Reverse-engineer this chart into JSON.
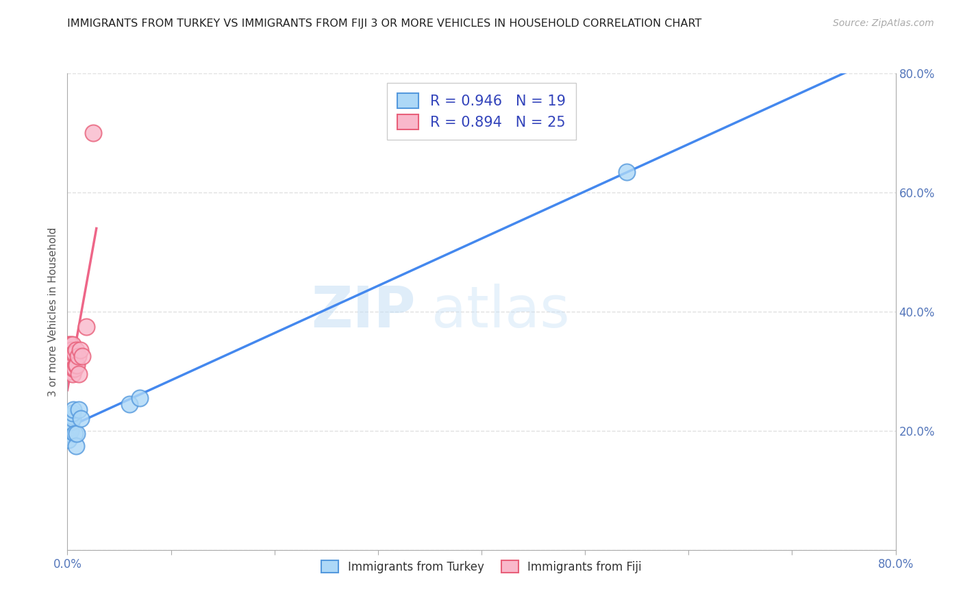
{
  "title": "IMMIGRANTS FROM TURKEY VS IMMIGRANTS FROM FIJI 3 OR MORE VEHICLES IN HOUSEHOLD CORRELATION CHART",
  "source": "Source: ZipAtlas.com",
  "ylabel": "3 or more Vehicles in Household",
  "xlim": [
    0.0,
    0.8
  ],
  "ylim": [
    0.0,
    0.8
  ],
  "xtick_vals": [
    0.0,
    0.1,
    0.2,
    0.3,
    0.4,
    0.5,
    0.6,
    0.7,
    0.8
  ],
  "ytick_vals": [
    0.0,
    0.2,
    0.4,
    0.6,
    0.8
  ],
  "background_color": "#ffffff",
  "watermark_text": "ZIP",
  "watermark_text2": "atlas",
  "turkey_color": "#add8f7",
  "turkey_edge_color": "#5599dd",
  "fiji_color": "#f9b8cb",
  "fiji_edge_color": "#e8607a",
  "turkey_R": 0.946,
  "turkey_N": 19,
  "fiji_R": 0.894,
  "fiji_N": 25,
  "turkey_line_color": "#4488ee",
  "fiji_line_color": "#ee6688",
  "turkey_scatter_x": [
    0.001,
    0.001,
    0.002,
    0.002,
    0.003,
    0.003,
    0.004,
    0.004,
    0.005,
    0.005,
    0.006,
    0.007,
    0.008,
    0.009,
    0.011,
    0.013,
    0.06,
    0.07,
    0.54
  ],
  "turkey_scatter_y": [
    0.195,
    0.185,
    0.215,
    0.205,
    0.22,
    0.2,
    0.215,
    0.225,
    0.22,
    0.23,
    0.235,
    0.195,
    0.175,
    0.195,
    0.235,
    0.22,
    0.245,
    0.255,
    0.635
  ],
  "fiji_scatter_x": [
    0.0008,
    0.001,
    0.002,
    0.002,
    0.003,
    0.003,
    0.003,
    0.004,
    0.004,
    0.005,
    0.005,
    0.005,
    0.006,
    0.006,
    0.007,
    0.007,
    0.008,
    0.008,
    0.009,
    0.01,
    0.011,
    0.012,
    0.014,
    0.018,
    0.025
  ],
  "fiji_scatter_y": [
    0.3,
    0.345,
    0.31,
    0.33,
    0.3,
    0.325,
    0.345,
    0.315,
    0.335,
    0.295,
    0.315,
    0.345,
    0.305,
    0.33,
    0.305,
    0.33,
    0.31,
    0.335,
    0.31,
    0.325,
    0.295,
    0.335,
    0.325,
    0.375,
    0.7
  ],
  "scatter_size": 300,
  "grid_color": "#cccccc",
  "grid_style": "--",
  "grid_alpha": 0.6,
  "legend_color": "#3344bb"
}
